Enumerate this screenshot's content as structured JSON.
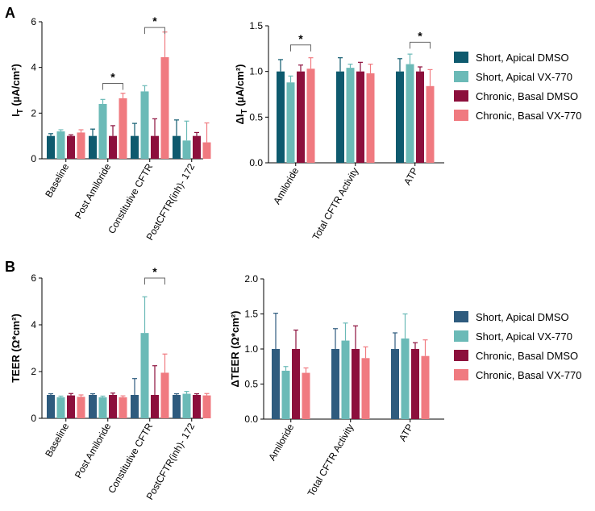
{
  "panel_letters": [
    "A",
    "B"
  ],
  "legend": {
    "entries": [
      "Short, Apical DMSO",
      "Short, Apical VX-770",
      "Chronic, Basal DMSO",
      "Chronic, Basal VX-770"
    ]
  },
  "colors": {
    "top": [
      "#0e5a6e",
      "#6bbab7",
      "#8c0f3c",
      "#f07a80"
    ],
    "bottom": [
      "#2e5b7e",
      "#6bbab7",
      "#8c0f3c",
      "#f07a80"
    ]
  },
  "chart_data": [
    {
      "type": "bar",
      "panel": "A",
      "ylabel_main": "I",
      "ylabel_sub": "T",
      "ylabel_unit": " (µA/cm²)",
      "ylim": [
        0,
        6
      ],
      "yticks": [
        "0",
        "2",
        "4",
        "6"
      ],
      "categories": [
        "Baseline",
        "Post Amiloride",
        "Constitutive CFTR",
        "PostCFTR(inh)- 172"
      ],
      "series": [
        {
          "name": "Short, Apical DMSO",
          "values": [
            1.0,
            1.0,
            1.0,
            1.0
          ],
          "errors": [
            0.1,
            0.3,
            0.55,
            0.7
          ]
        },
        {
          "name": "Short, Apical VX-770",
          "values": [
            1.2,
            2.4,
            2.95,
            0.8
          ],
          "errors": [
            0.07,
            0.2,
            0.25,
            0.85
          ]
        },
        {
          "name": "Chronic, Basal DMSO",
          "values": [
            1.0,
            1.0,
            1.0,
            1.0
          ],
          "errors": [
            0.05,
            0.45,
            0.75,
            0.15
          ]
        },
        {
          "name": "Chronic, Basal VX-770",
          "values": [
            1.15,
            2.65,
            4.45,
            0.72
          ],
          "errors": [
            0.12,
            0.22,
            1.1,
            0.85
          ]
        }
      ],
      "significance": [
        {
          "label": "*",
          "category": 1,
          "from_series": 1,
          "to_series": 3,
          "y": 3.3
        },
        {
          "label": "*",
          "category": 2,
          "from_series": 1,
          "to_series": 3,
          "y": 5.75
        }
      ]
    },
    {
      "type": "bar",
      "panel": "A",
      "ylabel_main": "ΔI",
      "ylabel_sub": "T",
      "ylabel_unit": " (µA/cm²)",
      "ylim": [
        0,
        1.5
      ],
      "yticks": [
        "0.0",
        "0.5",
        "1.0",
        "1.5"
      ],
      "categories": [
        "Amiloride",
        "Total CFTR Activity",
        "ATP"
      ],
      "series": [
        {
          "name": "Short, Apical DMSO",
          "values": [
            1.0,
            1.0,
            1.0
          ],
          "errors": [
            0.13,
            0.15,
            0.14
          ]
        },
        {
          "name": "Short, Apical VX-770",
          "values": [
            0.88,
            1.04,
            1.08
          ],
          "errors": [
            0.07,
            0.04,
            0.11
          ]
        },
        {
          "name": "Chronic, Basal DMSO",
          "values": [
            1.0,
            1.0,
            1.0
          ],
          "errors": [
            0.07,
            0.1,
            0.05
          ]
        },
        {
          "name": "Chronic, Basal VX-770",
          "values": [
            1.03,
            0.98,
            0.84
          ],
          "errors": [
            0.12,
            0.1,
            0.18
          ]
        }
      ],
      "significance": [
        {
          "label": "*",
          "category": 0,
          "from_series": 1,
          "to_series": 3,
          "y": 1.29
        },
        {
          "label": "*",
          "category": 2,
          "from_series": 1,
          "to_series": 3,
          "y": 1.32
        }
      ]
    },
    {
      "type": "bar",
      "panel": "B",
      "ylabel_main": "TEER (Ω*cm²)",
      "ylabel_sub": "",
      "ylabel_unit": "",
      "ylim": [
        0,
        6
      ],
      "yticks": [
        "0",
        "2",
        "4",
        "6"
      ],
      "categories": [
        "Baseline",
        "Post Amiloride",
        "Constitutive CFTR",
        "PostCFTR(inh)- 172"
      ],
      "series": [
        {
          "name": "Short, Apical DMSO",
          "values": [
            1.0,
            1.0,
            1.0,
            1.0
          ],
          "errors": [
            0.05,
            0.05,
            0.7,
            0.05
          ]
        },
        {
          "name": "Short, Apical VX-770",
          "values": [
            0.9,
            0.9,
            3.65,
            1.05
          ],
          "errors": [
            0.05,
            0.05,
            1.55,
            0.1
          ]
        },
        {
          "name": "Chronic, Basal DMSO",
          "values": [
            0.98,
            1.0,
            1.0,
            1.0
          ],
          "errors": [
            0.08,
            0.08,
            1.25,
            0.05
          ]
        },
        {
          "name": "Chronic, Basal VX-770",
          "values": [
            0.92,
            0.9,
            1.95,
            0.98
          ],
          "errors": [
            0.08,
            0.06,
            0.8,
            0.08
          ]
        }
      ],
      "significance": [
        {
          "label": "*",
          "category": 2,
          "from_series": 1,
          "to_series": 3,
          "y": 6.0
        }
      ]
    },
    {
      "type": "bar",
      "panel": "B",
      "ylabel_main": "ΔTEER (Ω*cm²)",
      "ylabel_sub": "",
      "ylabel_unit": "",
      "ylim": [
        0,
        2
      ],
      "yticks": [
        "0.0",
        "0.5",
        "1.0",
        "1.5",
        "2.0"
      ],
      "categories": [
        "Amiloride",
        "Total CFTR Activity",
        "ATP"
      ],
      "series": [
        {
          "name": "Short, Apical DMSO",
          "values": [
            1.0,
            1.0,
            1.0
          ],
          "errors": [
            0.51,
            0.29,
            0.23
          ]
        },
        {
          "name": "Short, Apical VX-770",
          "values": [
            0.69,
            1.12,
            1.15
          ],
          "errors": [
            0.06,
            0.25,
            0.35
          ]
        },
        {
          "name": "Chronic, Basal DMSO",
          "values": [
            1.0,
            1.0,
            1.0
          ],
          "errors": [
            0.27,
            0.33,
            0.09
          ]
        },
        {
          "name": "Chronic, Basal VX-770",
          "values": [
            0.66,
            0.87,
            0.9
          ],
          "errors": [
            0.07,
            0.16,
            0.23
          ]
        }
      ],
      "significance": []
    }
  ]
}
